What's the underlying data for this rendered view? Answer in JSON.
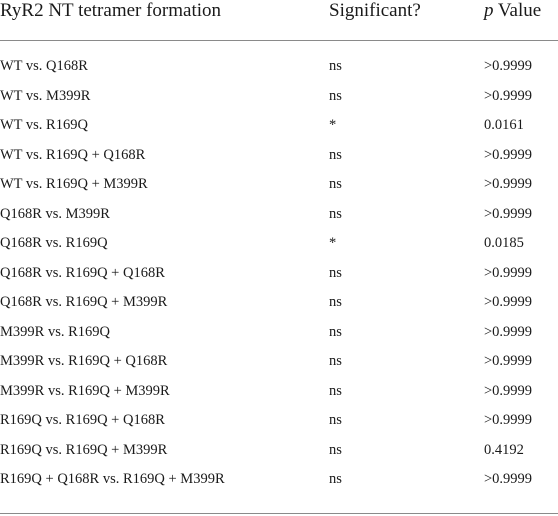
{
  "table": {
    "headers": {
      "comparison": "RyR2 NT tetramer formation",
      "significant": "Significant?",
      "p_letter": "p",
      "p_rest": " Value"
    },
    "rows": [
      {
        "comparison": "WT vs. Q168R",
        "significant": "ns",
        "p_value": ">0.9999"
      },
      {
        "comparison": "WT vs. M399R",
        "significant": "ns",
        "p_value": ">0.9999"
      },
      {
        "comparison": "WT vs. R169Q",
        "significant": "*",
        "p_value": "0.0161"
      },
      {
        "comparison": "WT vs. R169Q + Q168R",
        "significant": "ns",
        "p_value": ">0.9999"
      },
      {
        "comparison": "WT vs. R169Q + M399R",
        "significant": "ns",
        "p_value": ">0.9999"
      },
      {
        "comparison": "Q168R vs. M399R",
        "significant": "ns",
        "p_value": ">0.9999"
      },
      {
        "comparison": "Q168R vs. R169Q",
        "significant": "*",
        "p_value": "0.0185"
      },
      {
        "comparison": "Q168R vs. R169Q + Q168R",
        "significant": "ns",
        "p_value": ">0.9999"
      },
      {
        "comparison": "Q168R vs. R169Q + M399R",
        "significant": "ns",
        "p_value": ">0.9999"
      },
      {
        "comparison": "M399R vs. R169Q",
        "significant": "ns",
        "p_value": ">0.9999"
      },
      {
        "comparison": "M399R vs. R169Q + Q168R",
        "significant": "ns",
        "p_value": ">0.9999"
      },
      {
        "comparison": "M399R vs. R169Q + M399R",
        "significant": "ns",
        "p_value": ">0.9999"
      },
      {
        "comparison": "R169Q vs. R169Q + Q168R",
        "significant": "ns",
        "p_value": ">0.9999"
      },
      {
        "comparison": "R169Q vs. R169Q + M399R",
        "significant": "ns",
        "p_value": "0.4192"
      },
      {
        "comparison": "R169Q + Q168R vs. R169Q + M399R",
        "significant": "ns",
        "p_value": ">0.9999"
      }
    ]
  }
}
